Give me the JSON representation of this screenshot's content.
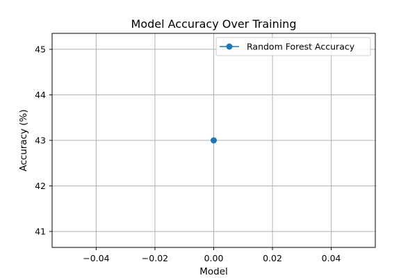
{
  "chart_data": {
    "type": "line",
    "title": "Model Accuracy Over Training",
    "xlabel": "Model",
    "ylabel": "Accuracy (%)",
    "xlim": [
      -0.055,
      0.055
    ],
    "ylim": [
      40.65,
      45.35
    ],
    "xticks": [
      -0.04,
      -0.02,
      0.0,
      0.02,
      0.04
    ],
    "xtick_labels": [
      "−0.04",
      "−0.02",
      "0.00",
      "0.02",
      "0.04"
    ],
    "yticks": [
      41,
      42,
      43,
      44,
      45
    ],
    "ytick_labels": [
      "41",
      "42",
      "43",
      "44",
      "45"
    ],
    "grid": true,
    "legend_position": "top-right",
    "series": [
      {
        "name": "Random Forest Accuracy",
        "color": "#1f77b4",
        "marker": "circle",
        "x": [
          0.0
        ],
        "y": [
          43
        ]
      }
    ]
  }
}
